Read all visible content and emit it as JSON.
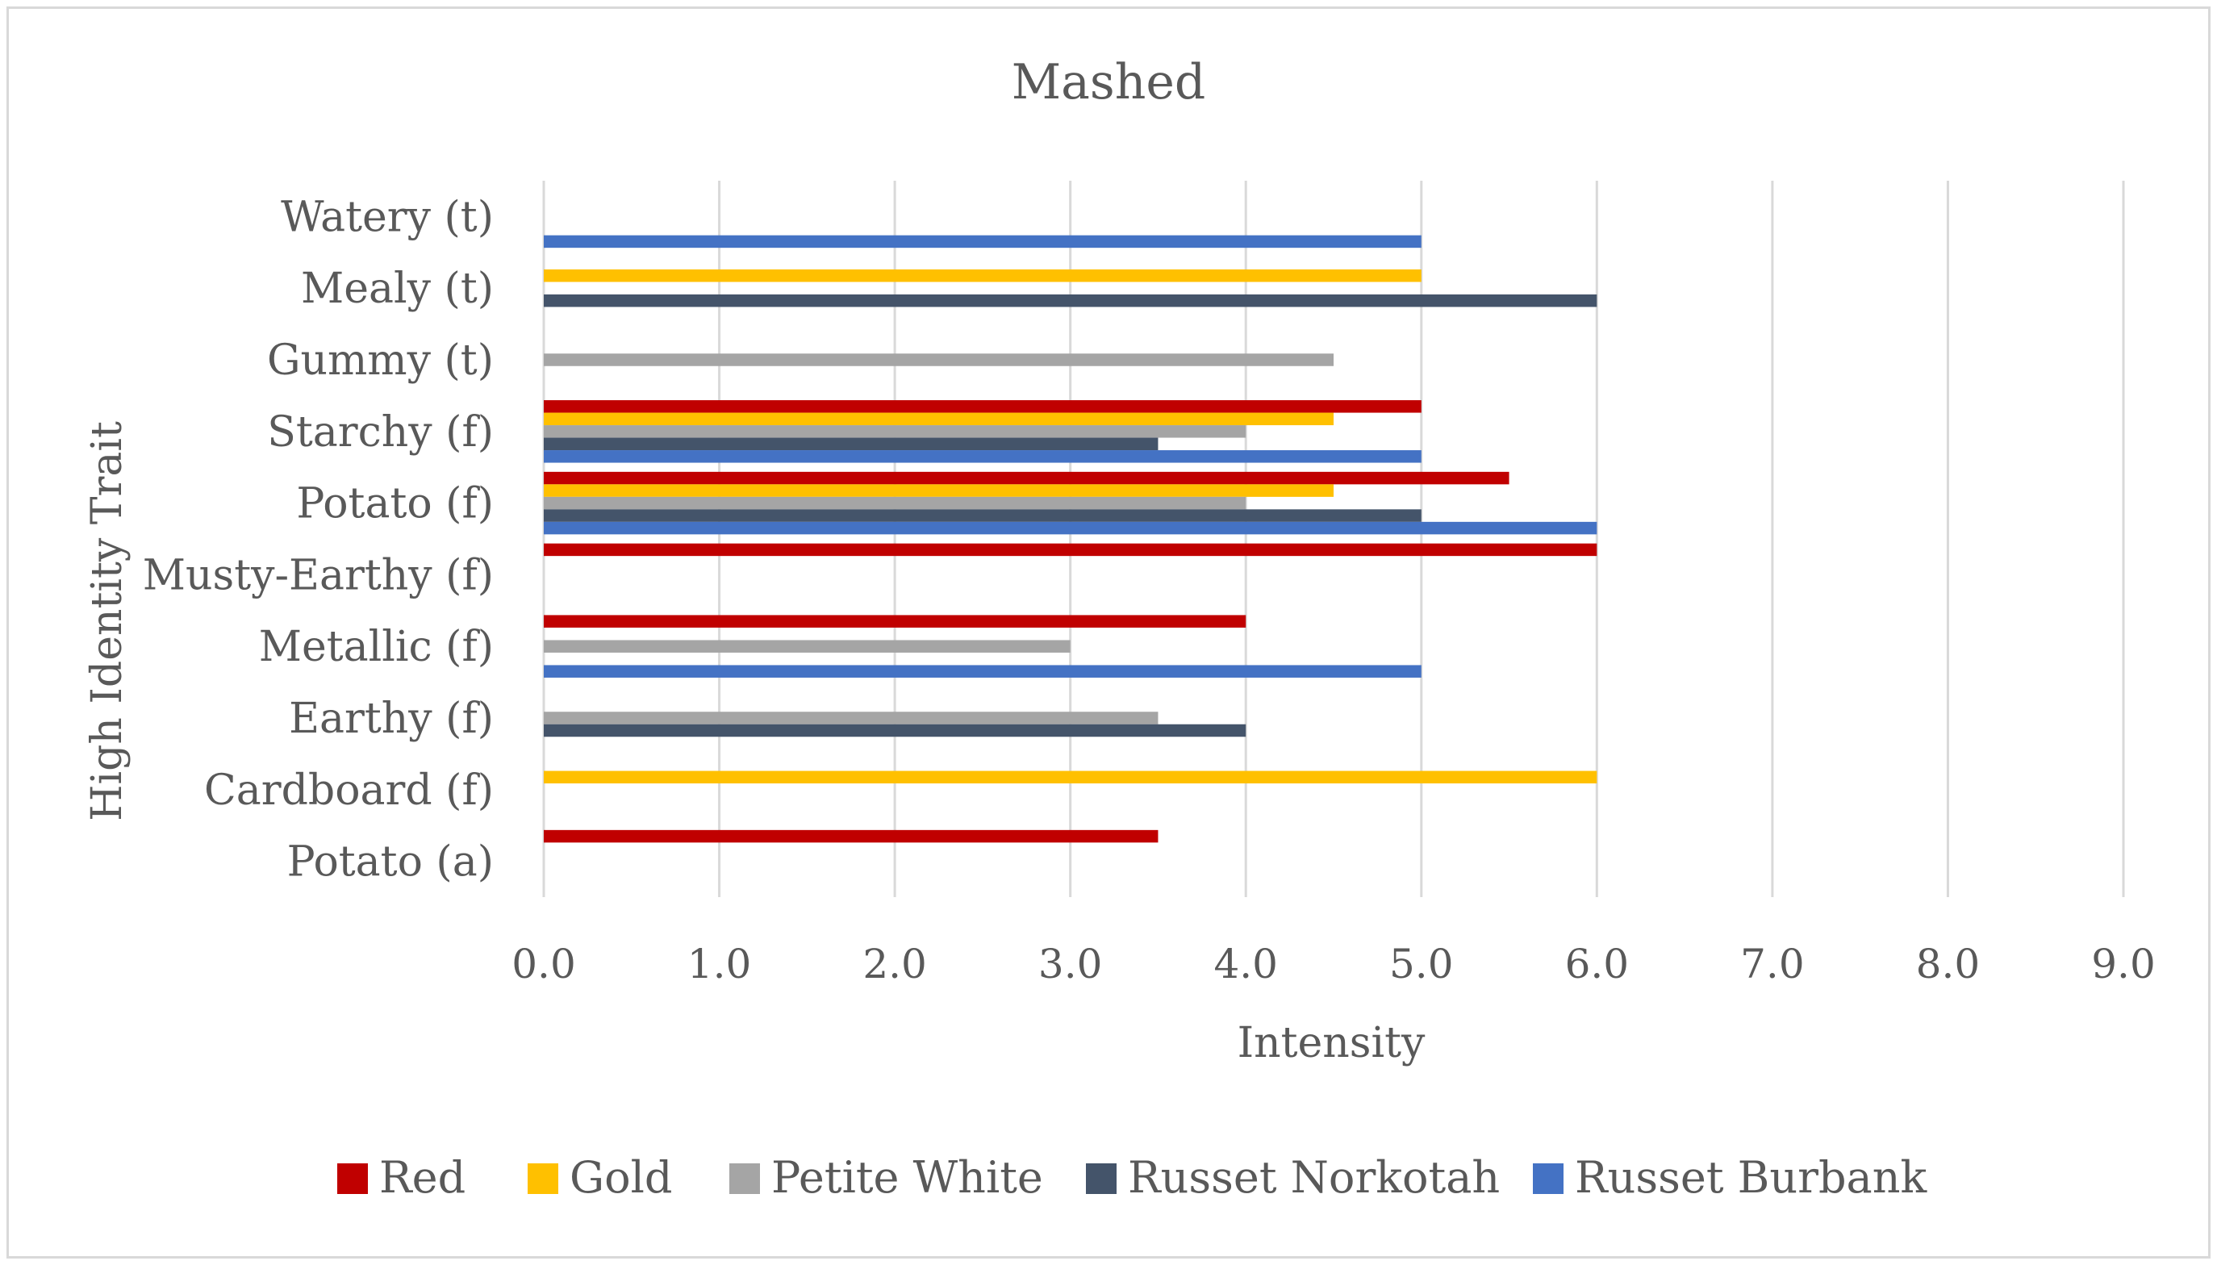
{
  "chart_data": {
    "type": "bar",
    "orientation": "horizontal",
    "title": "Mashed",
    "xlabel": "Intensity",
    "ylabel": "High Identity Trait",
    "xlim": [
      0,
      9
    ],
    "xticks": [
      "0.0",
      "1.0",
      "2.0",
      "3.0",
      "4.0",
      "5.0",
      "6.0",
      "7.0",
      "8.0",
      "9.0"
    ],
    "grid": true,
    "legend_position": "bottom",
    "categories": [
      "Potato (a)",
      "Cardboard (f)",
      "Earthy (f)",
      "Metallic (f)",
      "Musty-Earthy (f)",
      "Potato (f)",
      "Starchy (f)",
      "Gummy (t)",
      "Mealy (t)",
      "Watery (t)"
    ],
    "series": [
      {
        "name": "Red",
        "color": "#c00000",
        "values": [
          3.5,
          null,
          null,
          4.0,
          6.0,
          5.5,
          5.0,
          null,
          null,
          null
        ]
      },
      {
        "name": "Gold",
        "color": "#ffc000",
        "values": [
          null,
          6.0,
          null,
          null,
          null,
          4.5,
          4.5,
          null,
          5.0,
          null
        ]
      },
      {
        "name": "Petite White",
        "color": "#a5a5a5",
        "values": [
          null,
          null,
          3.5,
          3.0,
          null,
          4.0,
          4.0,
          4.5,
          null,
          null
        ]
      },
      {
        "name": "Russet Norkotah",
        "color": "#44546a",
        "values": [
          null,
          null,
          4.0,
          null,
          null,
          5.0,
          3.5,
          null,
          6.0,
          null
        ]
      },
      {
        "name": "Russet Burbank",
        "color": "#4472c4",
        "values": [
          null,
          null,
          null,
          5.0,
          null,
          6.0,
          5.0,
          null,
          null,
          5.0
        ]
      }
    ]
  }
}
